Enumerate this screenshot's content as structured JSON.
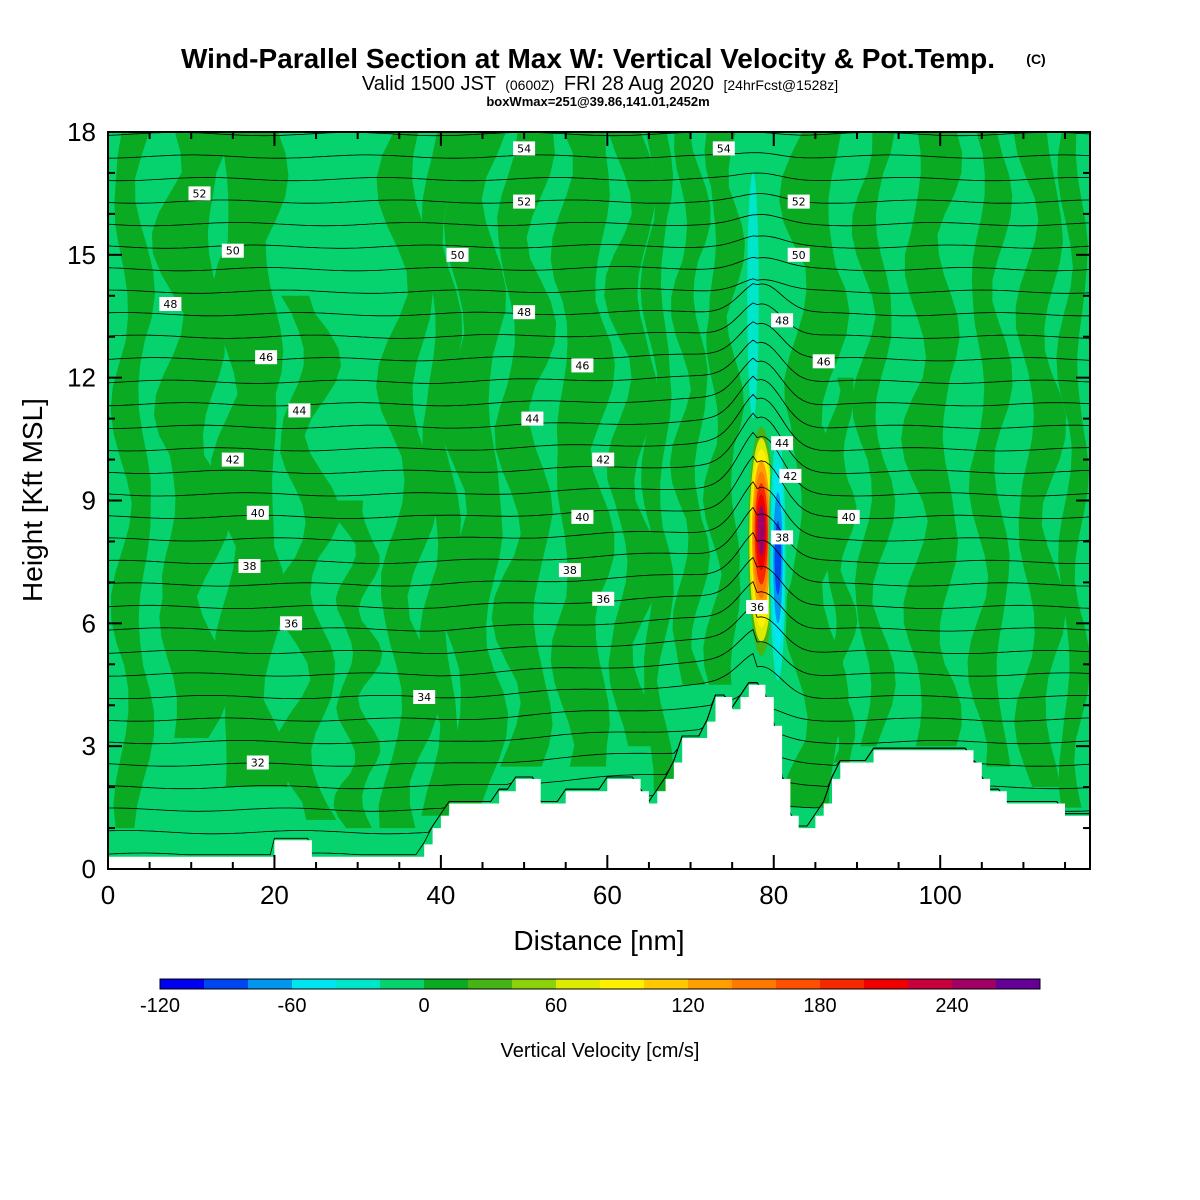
{
  "header": {
    "title": "Wind-Parallel Section at Max W: Vertical Velocity & Pot.Temp.",
    "copyright": "(C)",
    "valid_prefix": "Valid 1500 JST",
    "valid_zulu": "(0600Z)",
    "valid_date": "FRI 28 Aug 2020",
    "forecast": "[24hrFcst@1528z]",
    "box_info": "boxWmax=251@39.86,141.01,2452m"
  },
  "colors": {
    "background_w": "#06d36e",
    "weak_updraft": "#0aaa23",
    "terrain": "#ffffff",
    "contour": "#000000"
  },
  "chart_data": {
    "type": "heatmap",
    "title": "Wind-Parallel Section at Max W: Vertical Velocity & Pot.Temp.",
    "xlabel": "Distance [nm]",
    "ylabel": "Height [Kft MSL]",
    "xlim": [
      0,
      118
    ],
    "ylim": [
      0,
      18
    ],
    "x_ticks": [
      0,
      20,
      40,
      60,
      80,
      100
    ],
    "y_ticks": [
      0,
      3,
      6,
      9,
      12,
      15,
      18
    ],
    "colorbar": {
      "title": "Vertical Velocity [cm/s]",
      "tick_labels": [
        "-120",
        "-60",
        "0",
        "60",
        "120",
        "180",
        "240"
      ],
      "tick_values": [
        -120,
        -60,
        0,
        60,
        120,
        180,
        240
      ],
      "range": [
        -120,
        280
      ],
      "step": 20,
      "colors": [
        "#0000f0",
        "#0046f0",
        "#0096f0",
        "#00e6f0",
        "#00e6c8",
        "#06d36e",
        "#0aaa23",
        "#46b414",
        "#8cd20a",
        "#dceb00",
        "#fff000",
        "#ffc800",
        "#ffa000",
        "#ff7800",
        "#ff5000",
        "#f52800",
        "#f00000",
        "#c8003c",
        "#a00064",
        "#640096"
      ]
    },
    "theta_contours": {
      "label_values": [
        "32",
        "34",
        "36",
        "38",
        "40",
        "42",
        "44",
        "46",
        "48",
        "50",
        "52",
        "54"
      ]
    },
    "contour_labels": [
      {
        "text": "32",
        "x": 18,
        "y": 2.6
      },
      {
        "text": "34",
        "x": 38,
        "y": 4.2
      },
      {
        "text": "36",
        "x": 22,
        "y": 6.0
      },
      {
        "text": "36",
        "x": 59.5,
        "y": 6.6
      },
      {
        "text": "36",
        "x": 78,
        "y": 6.4
      },
      {
        "text": "38",
        "x": 17,
        "y": 7.4
      },
      {
        "text": "38",
        "x": 55.5,
        "y": 7.3
      },
      {
        "text": "38",
        "x": 81,
        "y": 8.1
      },
      {
        "text": "40",
        "x": 18,
        "y": 8.7
      },
      {
        "text": "40",
        "x": 57,
        "y": 8.6
      },
      {
        "text": "40",
        "x": 89,
        "y": 8.6
      },
      {
        "text": "42",
        "x": 15,
        "y": 10.0
      },
      {
        "text": "42",
        "x": 59.5,
        "y": 10.0
      },
      {
        "text": "42",
        "x": 82,
        "y": 9.6
      },
      {
        "text": "44",
        "x": 23,
        "y": 11.2
      },
      {
        "text": "44",
        "x": 51,
        "y": 11.0
      },
      {
        "text": "44",
        "x": 81,
        "y": 10.4
      },
      {
        "text": "46",
        "x": 19,
        "y": 12.5
      },
      {
        "text": "46",
        "x": 57,
        "y": 12.3
      },
      {
        "text": "46",
        "x": 86,
        "y": 12.4
      },
      {
        "text": "48",
        "x": 7.5,
        "y": 13.8
      },
      {
        "text": "48",
        "x": 50,
        "y": 13.6
      },
      {
        "text": "48",
        "x": 81,
        "y": 13.4
      },
      {
        "text": "50",
        "x": 15,
        "y": 15.1
      },
      {
        "text": "50",
        "x": 42,
        "y": 15.0
      },
      {
        "text": "50",
        "x": 83,
        "y": 15.0
      },
      {
        "text": "52",
        "x": 11,
        "y": 16.5
      },
      {
        "text": "52",
        "x": 50,
        "y": 16.3
      },
      {
        "text": "52",
        "x": 83,
        "y": 16.3
      },
      {
        "text": "54",
        "x": 50,
        "y": 17.6
      },
      {
        "text": "54",
        "x": 74,
        "y": 17.6
      }
    ],
    "terrain_profile_kft": {
      "x": [
        0,
        19.5,
        20,
        24,
        24.5,
        37,
        38,
        39,
        40,
        41,
        42,
        45,
        46,
        47,
        48,
        49,
        50,
        51,
        52,
        53,
        54,
        55,
        56,
        57,
        58,
        59,
        60,
        61,
        62,
        63,
        64,
        65,
        66,
        67,
        68,
        69,
        70,
        71,
        72,
        73,
        74,
        75,
        76,
        77,
        78,
        79,
        80,
        81,
        82,
        83,
        84,
        85,
        86,
        87,
        88,
        89,
        90,
        91,
        92,
        93,
        94,
        95,
        96,
        97,
        98,
        99,
        100,
        101,
        102,
        103,
        104,
        105,
        106,
        107,
        108,
        109,
        110,
        111,
        112,
        113,
        114,
        115,
        116,
        117,
        118
      ],
      "y": [
        0.3,
        0.3,
        0.7,
        0.7,
        0.3,
        0.3,
        0.6,
        1.0,
        1.3,
        1.6,
        1.6,
        1.6,
        1.6,
        1.9,
        1.9,
        2.2,
        2.2,
        2.2,
        1.6,
        1.6,
        1.6,
        1.9,
        1.9,
        1.9,
        1.9,
        1.9,
        2.2,
        2.2,
        2.2,
        2.2,
        1.9,
        1.6,
        1.9,
        2.2,
        2.6,
        3.2,
        3.2,
        3.2,
        3.6,
        4.2,
        4.2,
        3.9,
        4.2,
        4.5,
        4.5,
        4.2,
        3.5,
        2.2,
        1.3,
        1.0,
        1.0,
        1.3,
        1.6,
        2.2,
        2.6,
        2.6,
        2.6,
        2.6,
        2.9,
        2.9,
        2.9,
        2.9,
        2.9,
        2.9,
        2.9,
        2.9,
        2.9,
        2.9,
        2.9,
        2.9,
        2.6,
        2.2,
        1.9,
        1.9,
        1.6,
        1.6,
        1.6,
        1.6,
        1.6,
        1.6,
        1.6,
        1.3,
        1.3,
        1.3,
        1.3
      ]
    },
    "updraft_core_cm_s": {
      "x_center": 78.5,
      "y_range": [
        5.5,
        10.5
      ],
      "max": 251
    },
    "downdraft_core_cm_s": {
      "x_center": 80.5,
      "y_range": [
        3.5,
        10.5
      ],
      "min": -120
    }
  }
}
